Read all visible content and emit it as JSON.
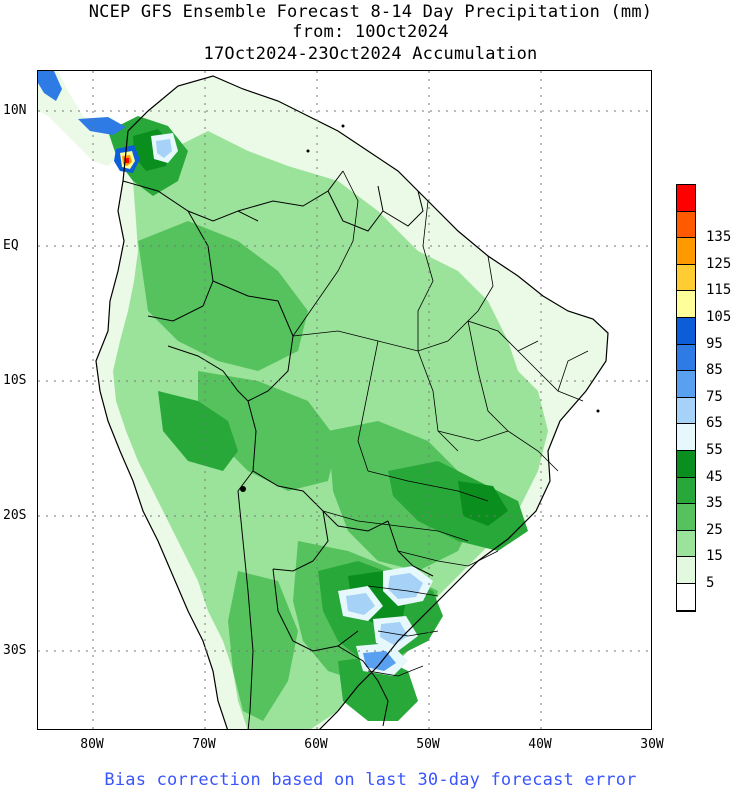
{
  "title": {
    "line1": "NCEP GFS Ensemble Forecast 8-14 Day Precipitation (mm)",
    "line2": "from: 10Oct2024",
    "line3": "17Oct2024-23Oct2024 Accumulation"
  },
  "axes": {
    "lat_labels": [
      "10N",
      "EQ",
      "10S",
      "20S",
      "30S"
    ],
    "lon_labels": [
      "80W",
      "70W",
      "60W",
      "50W",
      "40W",
      "30W"
    ]
  },
  "legend": {
    "unit": "mm",
    "bins": [
      {
        "label": "",
        "color": "#ff0000"
      },
      {
        "label": "135",
        "color": "#ff5a00"
      },
      {
        "label": "125",
        "color": "#ff9900"
      },
      {
        "label": "115",
        "color": "#ffcc33"
      },
      {
        "label": "105",
        "color": "#ffff99"
      },
      {
        "label": "95",
        "color": "#0b5ed7"
      },
      {
        "label": "85",
        "color": "#2f7be6"
      },
      {
        "label": "75",
        "color": "#5aa0f0"
      },
      {
        "label": "65",
        "color": "#a6d2f7"
      },
      {
        "label": "55",
        "color": "#e6f8fb"
      },
      {
        "label": "45",
        "color": "#0a8f1e"
      },
      {
        "label": "35",
        "color": "#29a83a"
      },
      {
        "label": "25",
        "color": "#55c25e"
      },
      {
        "label": "15",
        "color": "#9be39a"
      },
      {
        "label": "5",
        "color": "#e2f8df"
      },
      {
        "label": "",
        "color": "#ffffff"
      }
    ]
  },
  "footnote": "Bias correction based on last 30-day forecast error"
}
